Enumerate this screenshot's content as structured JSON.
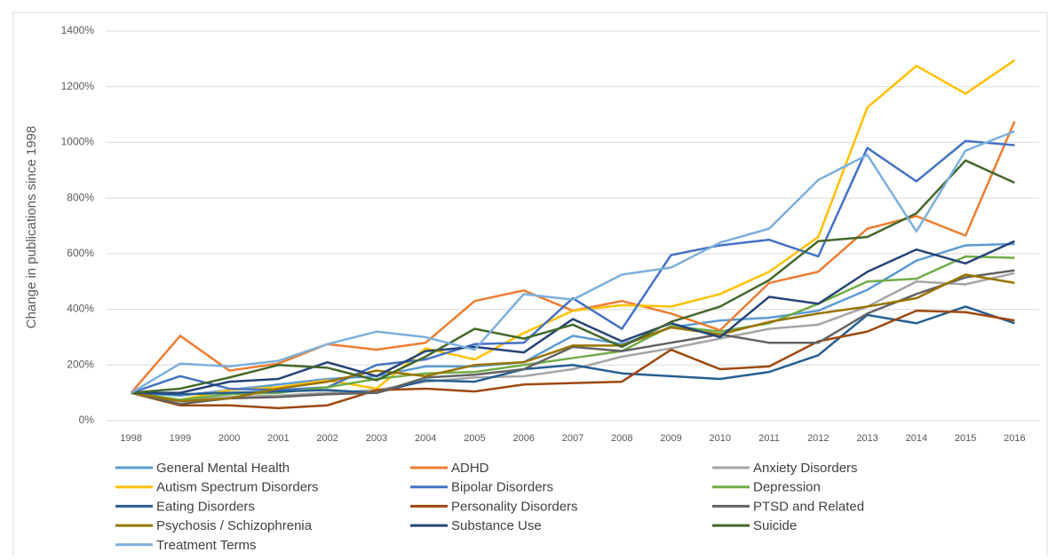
{
  "chart_data": {
    "type": "line",
    "y_label": "Change in publications since 1998",
    "categories": [
      "1998",
      "1999",
      "2000",
      "2001",
      "2002",
      "2003",
      "2004",
      "2005",
      "2006",
      "2007",
      "2008",
      "2009",
      "2010",
      "2011",
      "2012",
      "2013",
      "2014",
      "2015",
      "2016"
    ],
    "ylim": [
      0,
      1400
    ],
    "yticks": [
      {
        "value": 0,
        "label": "0%"
      },
      {
        "value": 200,
        "label": "200%"
      },
      {
        "value": 400,
        "label": "400%"
      },
      {
        "value": 600,
        "label": "600%"
      },
      {
        "value": 800,
        "label": "800%"
      },
      {
        "value": 1000,
        "label": "1000%"
      },
      {
        "value": 1200,
        "label": "1200%"
      },
      {
        "value": 1400,
        "label": "1400%"
      }
    ],
    "grid": true,
    "legend": "bottom",
    "series": [
      {
        "name": "General Mental Health",
        "color": "#5b9bd5",
        "values": [
          100,
          90,
          110,
          130,
          150,
          160,
          195,
          195,
          210,
          305,
          275,
          335,
          360,
          370,
          395,
          470,
          575,
          630,
          635
        ]
      },
      {
        "name": "ADHD",
        "color": "#ed7d31",
        "values": [
          100,
          305,
          180,
          205,
          275,
          255,
          280,
          430,
          468,
          395,
          430,
          385,
          325,
          495,
          535,
          690,
          735,
          665,
          1075
        ]
      },
      {
        "name": "Anxiety Disorders",
        "color": "#a5a5a5",
        "values": [
          100,
          70,
          85,
          90,
          100,
          110,
          140,
          155,
          160,
          185,
          230,
          260,
          295,
          330,
          345,
          410,
          500,
          490,
          530
        ]
      },
      {
        "name": "Autism Spectrum Disorders",
        "color": "#ffc000",
        "values": [
          100,
          75,
          110,
          120,
          145,
          115,
          260,
          220,
          315,
          395,
          415,
          410,
          455,
          535,
          660,
          1125,
          1275,
          1175,
          1295
        ]
      },
      {
        "name": "Bipolar Disorders",
        "color": "#4472c4",
        "values": [
          100,
          160,
          115,
          110,
          120,
          200,
          220,
          275,
          280,
          440,
          330,
          595,
          630,
          650,
          590,
          980,
          860,
          1005,
          990
        ]
      },
      {
        "name": "Depression",
        "color": "#70ad47",
        "values": [
          100,
          75,
          95,
          100,
          120,
          150,
          170,
          175,
          200,
          225,
          250,
          340,
          320,
          350,
          420,
          500,
          510,
          590,
          585
        ]
      },
      {
        "name": "Eating Disorders",
        "color": "#255e91",
        "values": [
          100,
          95,
          100,
          105,
          110,
          100,
          145,
          140,
          185,
          200,
          170,
          160,
          150,
          175,
          235,
          380,
          350,
          410,
          350
        ]
      },
      {
        "name": "Personality Disorders",
        "color": "#9e480e",
        "values": [
          100,
          55,
          55,
          45,
          55,
          110,
          115,
          105,
          130,
          135,
          140,
          255,
          185,
          195,
          285,
          320,
          395,
          390,
          360
        ]
      },
      {
        "name": "PTSD and Related",
        "color": "#636363",
        "values": [
          100,
          60,
          80,
          85,
          95,
          100,
          155,
          165,
          185,
          265,
          250,
          280,
          310,
          280,
          280,
          385,
          455,
          515,
          540
        ]
      },
      {
        "name": "Psychosis / Schizophrenia",
        "color": "#997300",
        "values": [
          100,
          70,
          80,
          115,
          140,
          180,
          160,
          200,
          210,
          270,
          270,
          335,
          310,
          355,
          385,
          410,
          440,
          525,
          495
        ]
      },
      {
        "name": "Substance Use",
        "color": "#264478",
        "values": [
          100,
          100,
          140,
          150,
          210,
          160,
          250,
          265,
          245,
          365,
          285,
          350,
          300,
          445,
          420,
          535,
          615,
          565,
          645
        ]
      },
      {
        "name": "Suicide",
        "color": "#43682b",
        "values": [
          100,
          115,
          155,
          200,
          190,
          145,
          230,
          330,
          295,
          345,
          265,
          355,
          410,
          505,
          645,
          660,
          745,
          935,
          855
        ]
      },
      {
        "name": "Treatment Terms",
        "color": "#7cafdd",
        "values": [
          100,
          205,
          195,
          215,
          275,
          320,
          300,
          255,
          455,
          435,
          525,
          550,
          640,
          690,
          865,
          955,
          680,
          970,
          1040
        ]
      }
    ]
  }
}
